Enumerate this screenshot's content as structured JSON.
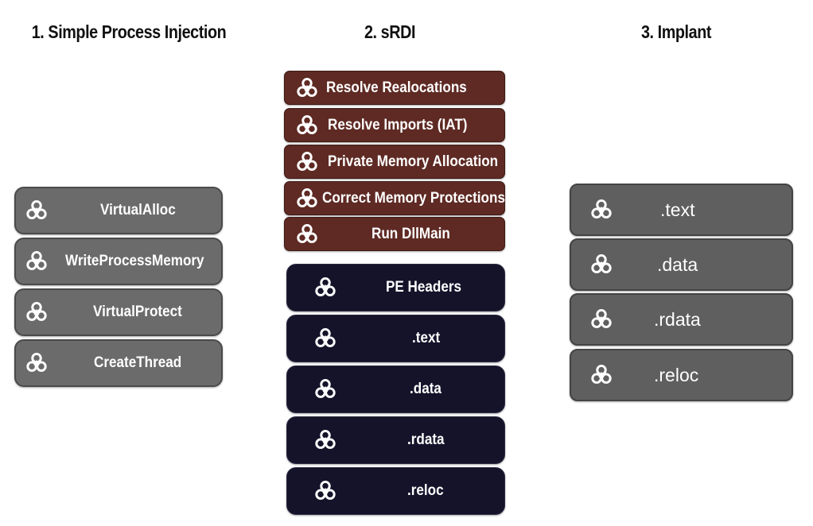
{
  "columns": [
    {
      "title": "1. Simple Process Injection",
      "blocks": [
        "VirtualAlloc",
        "WriteProcessMemory",
        "VirtualProtect",
        "CreateThread"
      ]
    },
    {
      "title": "2. sRDI",
      "loader_blocks": [
        "Resolve Realocations",
        "Resolve Imports (IAT)",
        "Private Memory Allocation",
        "Correct Memory Protections",
        "Run DllMain"
      ],
      "pe_blocks": [
        "PE Headers",
        ".text",
        ".data",
        ".rdata",
        ".reloc"
      ]
    },
    {
      "title": "3. Implant",
      "blocks": [
        ".text",
        ".data",
        ".rdata",
        ".reloc"
      ]
    }
  ],
  "icon_name": "biohazard-icon",
  "colors": {
    "grey_block": "#6b6b6b",
    "loader_block": "#5e2a23",
    "pe_block": "#14132a",
    "implant_block": "#5f5f5f"
  }
}
